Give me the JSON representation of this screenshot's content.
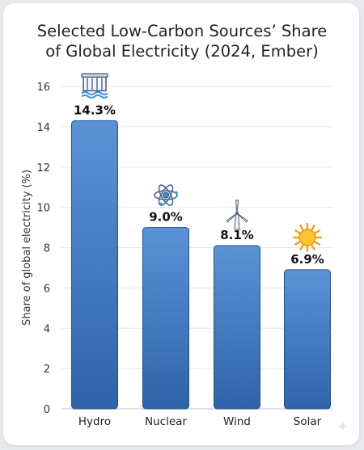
{
  "chart_data": {
    "type": "bar",
    "title_lines": [
      "Selected Low-Carbon Sources’ Share",
      "of Global Electricity (2024, Ember)"
    ],
    "ylabel": "Share of global electricity (%)",
    "xlabel": "",
    "ylim": [
      0,
      16
    ],
    "yticks": [
      "0",
      "2",
      "4",
      "6",
      "8",
      "10",
      "12",
      "14",
      "16"
    ],
    "grid": true,
    "categories": [
      "Hydro",
      "Nuclear",
      "Wind",
      "Solar"
    ],
    "values": [
      14.3,
      9.0,
      8.1,
      6.9
    ],
    "data_labels": [
      "14.3%",
      "9.0%",
      "8.1%",
      "6.9%"
    ],
    "icons": [
      "hydro-dam-icon",
      "atom-icon",
      "wind-turbine-icon",
      "sun-icon"
    ],
    "colors": {
      "bar_top": "#5b93d6",
      "bar_bottom": "#2e63a8",
      "bar_edge": "#244f8a",
      "grid": "#e4e6ea"
    }
  }
}
